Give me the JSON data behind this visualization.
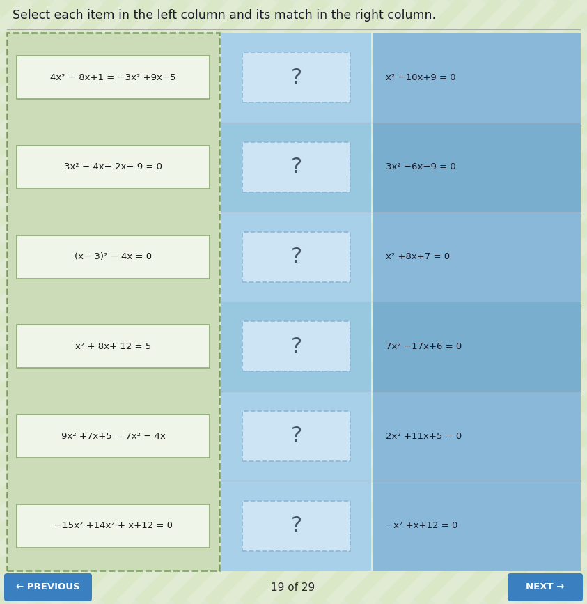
{
  "title": "Select each item in the left column and its match in the right column.",
  "title_fontsize": 12.5,
  "bg_color": "#dde8d0",
  "left_items": [
    "4x² − 8x+1 = −3x² +9x−5",
    "3x² − 4x− 2x− 9 = 0",
    "(x− 3)² − 4x = 0",
    "x² + 8x+ 12 = 5",
    "9x² +7x+5 = 7x² − 4x",
    "−15x² +14x² + x+12 = 0"
  ],
  "right_items": [
    "x² −10x+9 = 0",
    "3x² −6x−9 = 0",
    "x² +8x+7 = 0",
    "7x² −17x+6 = 0",
    "2x² +11x+5 = 0",
    "−x² +x+12 = 0"
  ],
  "footer_text": "19 of 29",
  "prev_text": "← PREVIOUS",
  "next_text": "NEXT →",
  "left_outer_bg": "#ccdcb8",
  "left_outer_border": "#7a9a60",
  "left_item_bg": "#f0f5ea",
  "left_item_border": "#8aaa70",
  "right_row_colors": [
    "#8ab8d8",
    "#7aaece",
    "#8ab8d8",
    "#7aaece",
    "#8ab8d8",
    "#8ab8d8"
  ],
  "mid_row_colors": [
    "#a8d0e8",
    "#98c8e0",
    "#a8d0e8",
    "#98c8e0",
    "#a8d0e8",
    "#a8d0e8"
  ],
  "mid_box_bg": "#cce4f4",
  "mid_box_border": "#90b8d8",
  "question_color": "#445566",
  "right_text_color": "#1a1a2a",
  "button_color": "#3a80c0",
  "button_text_color": "#ffffff",
  "divider_color": "#90aac0",
  "stripe_color1": "#d8e8c4",
  "stripe_color2": "#e8f0dc"
}
